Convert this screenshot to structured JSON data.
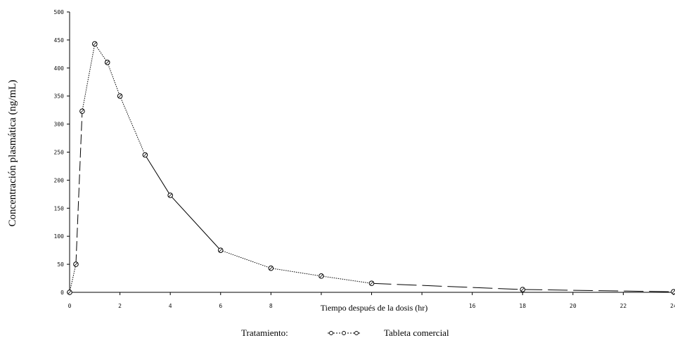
{
  "chart_data": {
    "type": "line",
    "ylabel": "Concentración plasmática (ng/mL)",
    "xlabel": "Tiempo después de la dosis (hr)",
    "xlim": [
      0,
      24
    ],
    "ylim": [
      0,
      500
    ],
    "x_ticks": [
      0,
      2,
      4,
      6,
      8,
      10,
      12,
      14,
      16,
      18,
      20,
      22,
      24
    ],
    "x_tick_labels": [
      "0",
      "2",
      "4",
      "6",
      "8",
      "",
      "",
      "",
      "16",
      "18",
      "20",
      "22",
      "24"
    ],
    "y_ticks": [
      0,
      50,
      100,
      150,
      200,
      250,
      300,
      350,
      400,
      450,
      500
    ],
    "y_tick_labels": [
      "0",
      "50",
      "100",
      "150",
      "200",
      "250",
      "300",
      "350",
      "400",
      "450",
      "500"
    ],
    "series": [
      {
        "name": "Tableta comercial",
        "x": [
          0,
          0.25,
          0.5,
          1,
          1.5,
          2,
          3,
          4,
          6,
          8,
          10,
          12,
          18,
          24
        ],
        "y": [
          0,
          50,
          323,
          443,
          410,
          350,
          245,
          173,
          75,
          43,
          29,
          16,
          5,
          1
        ]
      }
    ],
    "legend": {
      "title": "Tratamiento:",
      "entries": [
        "Tableta comercial"
      ],
      "placement": "bottom-center"
    },
    "grid": false
  }
}
